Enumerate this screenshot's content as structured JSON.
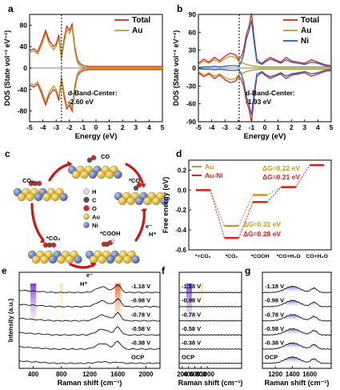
{
  "panels": {
    "a": {
      "letter": "a",
      "ylabel": "DOS (State vol⁻¹ eV⁻¹)",
      "xlabel": "Energy (eV)",
      "legend": [
        "Total",
        "Au"
      ],
      "annotation": [
        "d-Band-Center:",
        "-2.60 eV"
      ]
    },
    "b": {
      "letter": "b",
      "ylabel": "DOS (State vol⁻¹ eV⁻¹)",
      "xlabel": "Energy (eV)",
      "legend": [
        "Total",
        "Au",
        "Ni"
      ],
      "annotation": [
        "d-Band-Center:",
        "-1.93 eV"
      ]
    },
    "c": {
      "letter": "c",
      "legend": [
        "H",
        "C",
        "O",
        "Au",
        "Ni"
      ],
      "species": [
        "CO",
        "CO₂",
        "*CO",
        "*COOH",
        "*CO₂"
      ],
      "arrows": [
        "e⁻",
        "H⁺",
        "e⁻",
        "H⁺"
      ]
    },
    "d": {
      "letter": "d",
      "ylabel": "Free energy (eV)",
      "xticks": [
        "*+CO₂",
        "*CO₂",
        "*COOH",
        "*CO+H₂O",
        "CO+H₂O"
      ],
      "legend": [
        "Au",
        "Au-Ni"
      ],
      "dg": [
        "ΔG=0.22 eV",
        "ΔG=0.21 eV",
        "ΔG=0.31 eV",
        "ΔG=0.28 eV"
      ]
    },
    "e": {
      "letter": "e",
      "xlabel": "Raman shift (cm⁻¹)",
      "ylabel": "Intensity (a.u.)",
      "labels": [
        "-1.18 V",
        "-0.98 V",
        "-0.78 V",
        "-0.58 V",
        "-0.38 V",
        "OCP"
      ]
    },
    "f": {
      "letter": "f",
      "xlabel": "Raman shift (cm⁻¹)",
      "labels": [
        "-1.18 V",
        "-0.98 V",
        "-0.78 V",
        "-0.58 V",
        "-0.38 V",
        "OCP"
      ]
    },
    "g": {
      "letter": "g",
      "xlabel": "Raman shift (cm⁻¹)",
      "labels": [
        "-1.18 V",
        "-0.98 V",
        "-0.78 V",
        "-0.58 V",
        "-0.38 V",
        "OCP"
      ]
    }
  },
  "chart_data": [
    {
      "type": "line",
      "panel": "a",
      "xlim": [
        -5,
        5
      ],
      "ylim": [
        -100,
        100
      ],
      "xticks": [
        "-5",
        "-4",
        "-3",
        "-2",
        "-1",
        "0",
        "1",
        "2",
        "3",
        "4",
        "5"
      ],
      "yticks": [
        "-80",
        "-40",
        "0",
        "40",
        "80"
      ],
      "x": [
        -5.0,
        -4.7,
        -4.4,
        -4.1,
        -3.8,
        -3.5,
        -3.2,
        -3.0,
        -2.8,
        -2.6,
        -2.4,
        -2.2,
        -2.0,
        -1.8,
        -1.6,
        -1.4,
        -1.2,
        -1.0,
        -0.8,
        -0.6,
        -0.4,
        -0.2,
        0.0,
        0.5,
        1.0,
        1.5,
        2.0,
        3.0,
        4.0,
        5.0
      ],
      "series": [
        {
          "name": "Total",
          "color": "#e02020",
          "values": [
            32,
            36,
            30,
            48,
            70,
            50,
            40,
            45,
            62,
            20,
            55,
            78,
            70,
            82,
            40,
            15,
            8,
            5,
            4,
            3,
            3,
            3,
            3,
            3,
            3,
            3,
            3,
            3,
            3,
            3
          ]
        },
        {
          "name": "Au",
          "color": "#b8a020",
          "values": [
            28,
            32,
            26,
            42,
            64,
            44,
            34,
            40,
            56,
            16,
            48,
            72,
            64,
            76,
            34,
            10,
            4,
            2,
            1,
            1,
            1,
            1,
            1,
            1,
            1,
            1,
            1,
            1,
            1,
            1
          ]
        }
      ],
      "dband_center": -2.6
    },
    {
      "type": "line",
      "panel": "b",
      "xlim": [
        -5,
        5
      ],
      "ylim": [
        -90,
        90
      ],
      "xticks": [
        "-5",
        "-4",
        "-3",
        "-2",
        "-1",
        "0",
        "1",
        "2",
        "3",
        "4",
        "5"
      ],
      "yticks": [
        "-90",
        "-60",
        "-30",
        "0",
        "30",
        "60",
        "90"
      ],
      "x": [
        -5.0,
        -4.6,
        -4.2,
        -3.8,
        -3.4,
        -3.0,
        -2.6,
        -2.2,
        -2.0,
        -1.8,
        -1.6,
        -1.4,
        -1.2,
        -1.0,
        -0.8,
        -0.6,
        -0.4,
        -0.2,
        0.0,
        0.4,
        0.8,
        1.2,
        1.6,
        2.0,
        2.5,
        3.0,
        3.5,
        4.0,
        4.5,
        5.0
      ],
      "series": [
        {
          "name": "Total",
          "color": "#e02020",
          "values": [
            8,
            15,
            10,
            18,
            12,
            20,
            25,
            22,
            15,
            18,
            30,
            55,
            70,
            92,
            50,
            15,
            10,
            8,
            12,
            18,
            14,
            10,
            18,
            12,
            10,
            8,
            14,
            10,
            6,
            4
          ]
        },
        {
          "name": "Au",
          "color": "#b8a020",
          "values": [
            6,
            12,
            8,
            14,
            10,
            16,
            20,
            18,
            12,
            10,
            8,
            6,
            5,
            4,
            3,
            3,
            2,
            2,
            2,
            2,
            2,
            2,
            2,
            2,
            2,
            2,
            2,
            2,
            2,
            2
          ]
        },
        {
          "name": "Ni",
          "color": "#2060c0",
          "values": [
            1,
            2,
            2,
            3,
            2,
            3,
            4,
            4,
            3,
            8,
            22,
            48,
            62,
            80,
            42,
            10,
            8,
            6,
            10,
            15,
            12,
            8,
            14,
            10,
            8,
            6,
            10,
            8,
            4,
            2
          ]
        }
      ],
      "dband_center": -1.93
    },
    {
      "type": "line",
      "panel": "d",
      "ylim": [
        -0.6,
        0.3
      ],
      "yticks": [
        "-0.6",
        "-0.4",
        "-0.2",
        "0.0",
        "0.2"
      ],
      "categories": [
        "*+CO₂",
        "*CO₂",
        "*COOH",
        "*CO+H₂O",
        "CO+H₂O"
      ],
      "series": [
        {
          "name": "Au",
          "color": "#b8a020",
          "values": [
            0.0,
            -0.36,
            -0.05,
            0.03,
            0.25
          ]
        },
        {
          "name": "Au-Ni",
          "color": "#e02020",
          "values": [
            0.0,
            -0.48,
            -0.12,
            0.03,
            0.25
          ]
        }
      ]
    },
    {
      "type": "line",
      "panel": "e",
      "xlim": [
        200,
        2200
      ],
      "xticks": [
        "400",
        "800",
        "1200",
        "1600",
        "2000"
      ],
      "series_labels": [
        "-1.18 V",
        "-0.98 V",
        "-0.78 V",
        "-0.58 V",
        "-0.38 V",
        "OCP"
      ],
      "highlights": [
        {
          "x": 400,
          "color": "#8a4fd8"
        },
        {
          "x": 800,
          "color": "#e8e070"
        },
        {
          "x": 1600,
          "color": "#f08a50"
        }
      ]
    },
    {
      "type": "line",
      "panel": "f",
      "xlim": [
        100,
        2100
      ],
      "xticks": [
        "200",
        "400",
        "600",
        "800",
        "1000"
      ],
      "series_labels": [
        "-1.18 V",
        "-0.98 V",
        "-0.78 V",
        "-0.58 V",
        "-0.38 V",
        "OCP"
      ],
      "highlights": [
        {
          "x": 420,
          "color": "#8a4fd8"
        },
        {
          "x": 820,
          "color": "#e8e070"
        }
      ]
    },
    {
      "type": "line",
      "panel": "g",
      "xlim": [
        1050,
        1850
      ],
      "xticks": [
        "1200",
        "1400",
        "1600"
      ],
      "series_labels": [
        "-1.18 V",
        "-0.98 V",
        "-0.78 V",
        "-0.58 V",
        "-0.38 V",
        "OCP"
      ],
      "fills": [
        {
          "center": 1400,
          "color": "#4a4ad8"
        },
        {
          "center": 1660,
          "color": "#e0a060"
        }
      ]
    }
  ]
}
